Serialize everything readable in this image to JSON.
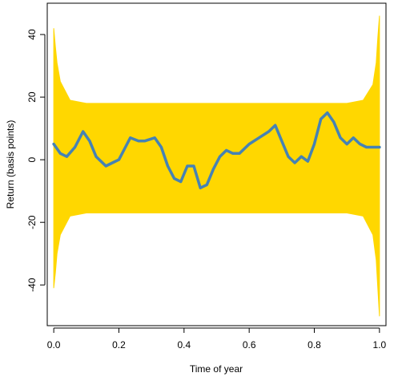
{
  "chart_data": {
    "type": "line",
    "xlabel": "Time of year",
    "ylabel": "Return (basis points)",
    "xlim": [
      -0.02,
      1.02
    ],
    "ylim": [
      -53,
      50
    ],
    "x_ticks": [
      0.0,
      0.2,
      0.4,
      0.6,
      0.8,
      1.0
    ],
    "x_tick_labels": [
      "0.0",
      "0.2",
      "0.4",
      "0.6",
      "0.8",
      "1.0"
    ],
    "y_ticks": [
      -40,
      -20,
      0,
      20,
      40
    ],
    "y_tick_labels": [
      "-40",
      "-20",
      "0",
      "20",
      "40"
    ],
    "grid": false,
    "legend": "none",
    "band": {
      "color": "#FFD700",
      "x": [
        0.0,
        0.005,
        0.01,
        0.02,
        0.05,
        0.1,
        0.2,
        0.3,
        0.4,
        0.5,
        0.6,
        0.7,
        0.8,
        0.9,
        0.95,
        0.98,
        0.99,
        0.995,
        1.0
      ],
      "upper": [
        42,
        36,
        31,
        25,
        19,
        18,
        18,
        18,
        18,
        18,
        18,
        18,
        18,
        18,
        19,
        24,
        31,
        39,
        46
      ],
      "lower": [
        -41,
        -36,
        -30,
        -24,
        -18,
        -17,
        -17,
        -17,
        -17,
        -17,
        -17,
        -17,
        -17,
        -17,
        -18,
        -24,
        -32,
        -41,
        -50
      ]
    },
    "series": [
      {
        "color": "#4682B4",
        "x": [
          0.0,
          0.02,
          0.04,
          0.065,
          0.09,
          0.11,
          0.13,
          0.16,
          0.18,
          0.2,
          0.22,
          0.235,
          0.26,
          0.28,
          0.31,
          0.33,
          0.35,
          0.37,
          0.39,
          0.41,
          0.43,
          0.45,
          0.47,
          0.49,
          0.51,
          0.53,
          0.55,
          0.57,
          0.6,
          0.63,
          0.66,
          0.68,
          0.7,
          0.72,
          0.74,
          0.76,
          0.78,
          0.8,
          0.82,
          0.84,
          0.86,
          0.88,
          0.9,
          0.92,
          0.94,
          0.96,
          0.98,
          1.0
        ],
        "values": [
          5,
          2,
          1,
          4,
          9,
          6,
          1,
          -2,
          -1,
          0,
          4,
          7,
          6,
          6,
          7,
          4,
          -2,
          -6,
          -7,
          -2,
          -2,
          -9,
          -8,
          -3,
          1,
          3,
          2,
          2,
          5,
          7,
          9,
          11,
          6,
          1,
          -1,
          1,
          -0.5,
          5,
          13,
          15,
          12,
          7,
          5,
          7,
          5,
          4,
          4,
          4
        ]
      }
    ]
  }
}
